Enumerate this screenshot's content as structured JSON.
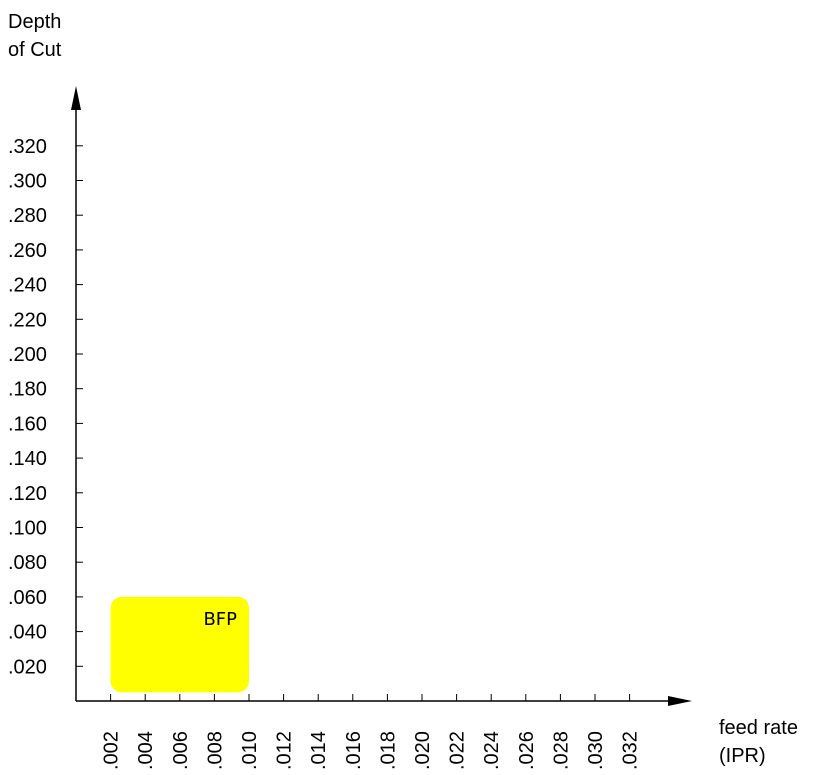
{
  "chart_data": {
    "type": "area",
    "ylabel_lines": [
      "Depth",
      "of Cut"
    ],
    "xlabel_lines": [
      "feed rate",
      "(IPR)"
    ],
    "y_ticks": [
      ".020",
      ".040",
      ".060",
      ".080",
      ".100",
      ".120",
      ".140",
      ".160",
      ".180",
      ".200",
      ".220",
      ".240",
      ".260",
      ".280",
      ".300",
      ".320"
    ],
    "y_tick_values": [
      0.02,
      0.04,
      0.06,
      0.08,
      0.1,
      0.12,
      0.14,
      0.16,
      0.18,
      0.2,
      0.22,
      0.24,
      0.26,
      0.28,
      0.3,
      0.32
    ],
    "x_ticks": [
      ".002",
      ".004",
      ".006",
      ".008",
      ".010",
      ".012",
      ".014",
      ".016",
      ".018",
      ".020",
      ".022",
      ".024",
      ".026",
      ".028",
      ".030",
      ".032"
    ],
    "x_tick_values": [
      0.002,
      0.004,
      0.006,
      0.008,
      0.01,
      0.012,
      0.014,
      0.016,
      0.018,
      0.02,
      0.022,
      0.024,
      0.026,
      0.028,
      0.03,
      0.032
    ],
    "xlim": [
      0.0,
      0.035
    ],
    "ylim": [
      0.0,
      0.35
    ],
    "grid": false,
    "regions": [
      {
        "label": "BFP",
        "x_range": [
          0.002,
          0.01
        ],
        "y_range": [
          0.005,
          0.06
        ],
        "color": "#ffff00"
      }
    ]
  }
}
